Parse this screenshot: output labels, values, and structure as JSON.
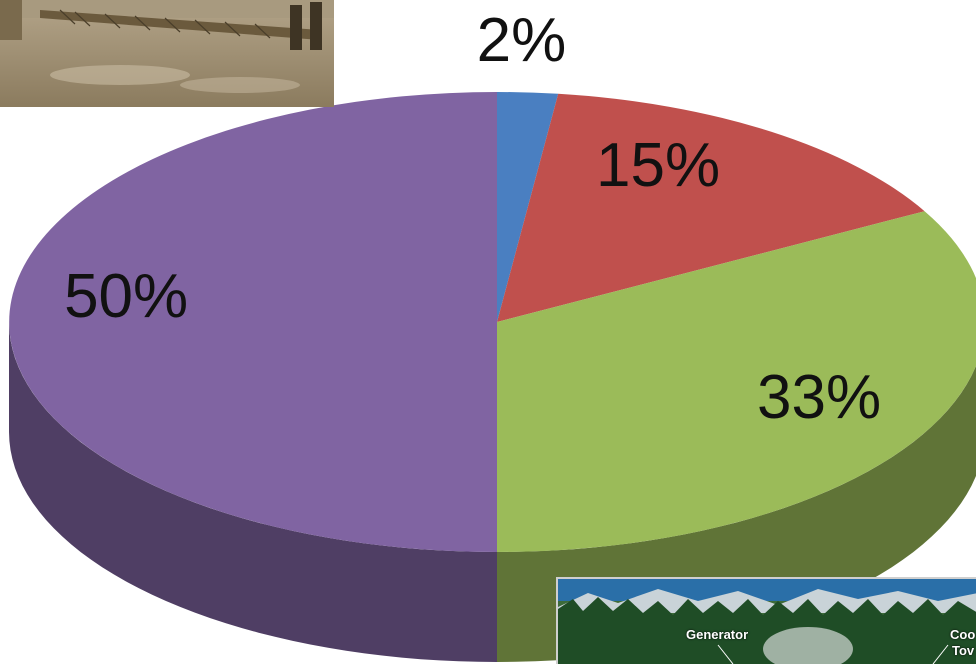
{
  "chart_data": {
    "type": "pie",
    "style": "3d",
    "title": "",
    "slices": [
      {
        "label": "2%",
        "value": 2,
        "color": "#4a7fc1"
      },
      {
        "label": "15%",
        "value": 15,
        "color": "#c0504d"
      },
      {
        "label": "33%",
        "value": 33,
        "color": "#9bbb59"
      },
      {
        "label": "50%",
        "value": 50,
        "color": "#8064a2"
      }
    ]
  },
  "photos": {
    "top_photo_icon": "river-bridge-photo",
    "bottom_photo_icon": "power-plant-diagram-photo",
    "bottom_captions": [
      "Generator",
      "Coo",
      "Tov"
    ]
  }
}
